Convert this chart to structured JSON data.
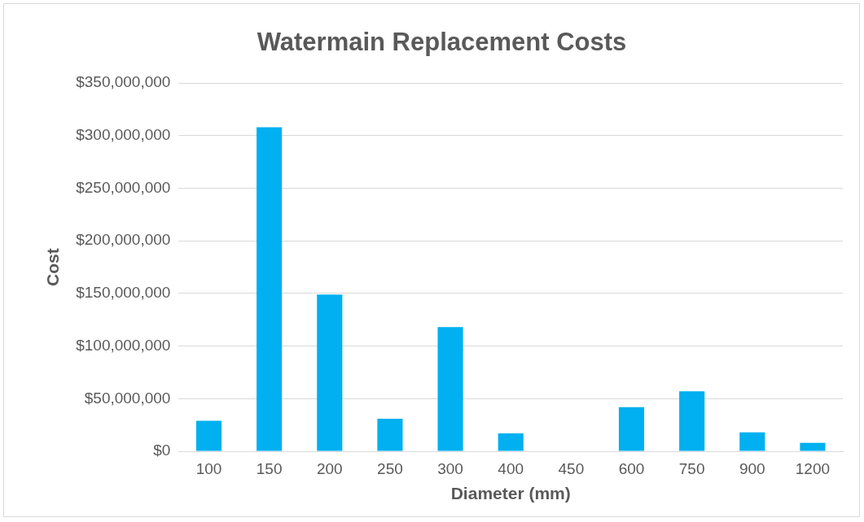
{
  "chart_data": {
    "type": "bar",
    "title": "Watermain Replacement Costs",
    "xlabel": "Diameter (mm)",
    "ylabel": "Cost",
    "categories": [
      "100",
      "150",
      "200",
      "250",
      "300",
      "400",
      "450",
      "600",
      "750",
      "900",
      "1200"
    ],
    "values": [
      29000000,
      308000000,
      149000000,
      31000000,
      118000000,
      17000000,
      0,
      42000000,
      57000000,
      18000000,
      8000000
    ],
    "color": "#00b0f0",
    "ylim": [
      0,
      350000000
    ],
    "yticks": [
      {
        "value": 0,
        "label": "$0"
      },
      {
        "value": 50000000,
        "label": "$50,000,000"
      },
      {
        "value": 100000000,
        "label": "$100,000,000"
      },
      {
        "value": 150000000,
        "label": "$150,000,000"
      },
      {
        "value": 200000000,
        "label": "$200,000,000"
      },
      {
        "value": 250000000,
        "label": "$250,000,000"
      },
      {
        "value": 300000000,
        "label": "$300,000,000"
      },
      {
        "value": 350000000,
        "label": "$350,000,000"
      }
    ],
    "grid": "y",
    "legend": false
  }
}
